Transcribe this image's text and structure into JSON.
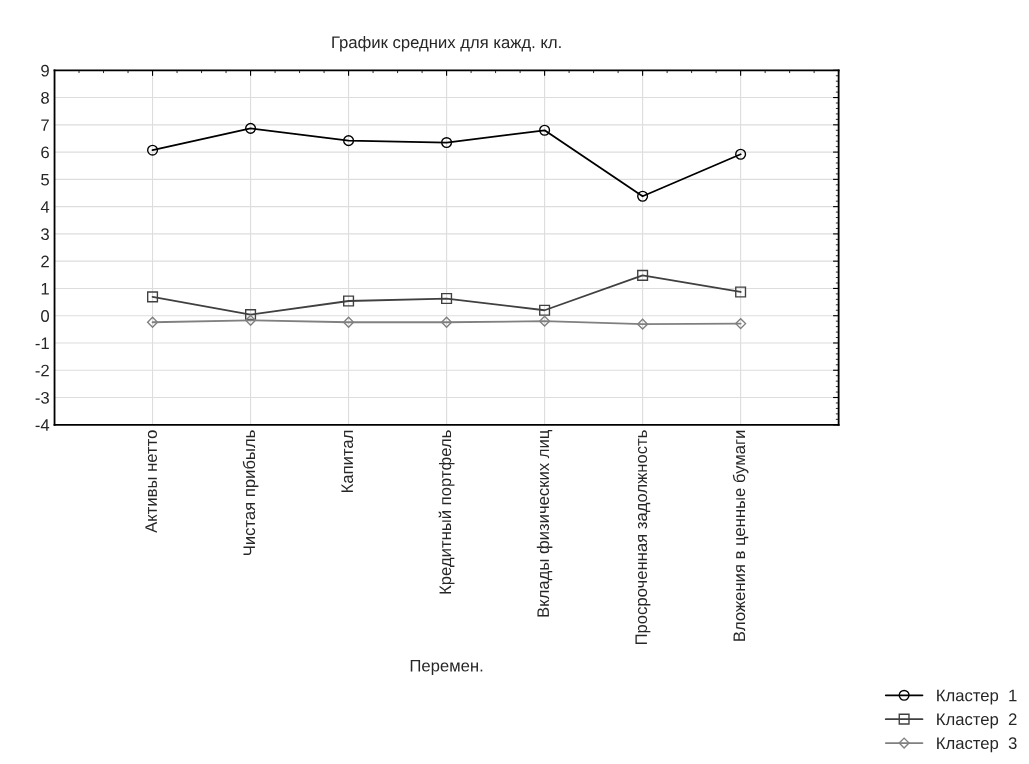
{
  "chart_data": {
    "type": "line",
    "title": "График средних для кажд. кл.",
    "xlabel": "Перемен.",
    "categories": [
      "Активы нетто",
      "Чистая прибыль",
      "Капитал",
      "Кредитный портфель",
      "Вклады физических лиц",
      "Просроченная задолжность",
      "Вложения в ценные бумаги"
    ],
    "series": [
      {
        "name": "Кластер  1",
        "color": "#000000",
        "marker": "circle",
        "values": [
          6.07,
          6.87,
          6.42,
          6.35,
          6.8,
          4.38,
          5.92
        ]
      },
      {
        "name": "Кластер  2",
        "color": "#404040",
        "marker": "square",
        "values": [
          0.69,
          0.04,
          0.54,
          0.63,
          0.2,
          1.48,
          0.87
        ]
      },
      {
        "name": "Кластер  3",
        "color": "#808080",
        "marker": "diamond",
        "values": [
          -0.24,
          -0.17,
          -0.24,
          -0.24,
          -0.2,
          -0.31,
          -0.29
        ]
      }
    ],
    "ylim": [
      -4,
      9
    ],
    "yticks": [
      -4,
      -3,
      -2,
      -1,
      0,
      1,
      2,
      3,
      4,
      5,
      6,
      7,
      8,
      9
    ],
    "grid": true,
    "legend": "bottom right"
  }
}
